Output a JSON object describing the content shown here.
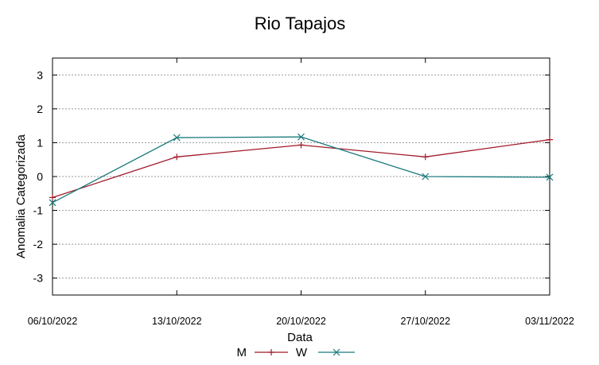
{
  "chart_data": {
    "type": "line",
    "title": "Rio Tapajos",
    "xlabel": "Data",
    "ylabel": "Anomalia Categorizada",
    "categories": [
      "06/10/2022",
      "13/10/2022",
      "20/10/2022",
      "27/10/2022",
      "03/11/2022"
    ],
    "ylim": [
      -3.5,
      3.5
    ],
    "yticks": [
      "3",
      "2",
      "1",
      "0",
      "-1",
      "-2",
      "-3"
    ],
    "grid": "horizontal-dotted",
    "legend_position": "bottom",
    "series": [
      {
        "name": "M",
        "color": "#a11a2a",
        "marker": "plus",
        "values": [
          -0.62,
          0.58,
          0.93,
          0.58,
          1.09
        ]
      },
      {
        "name": "W",
        "color": "#1a7a7d",
        "marker": "x",
        "values": [
          -0.77,
          1.15,
          1.17,
          0.0,
          -0.02
        ]
      }
    ]
  }
}
